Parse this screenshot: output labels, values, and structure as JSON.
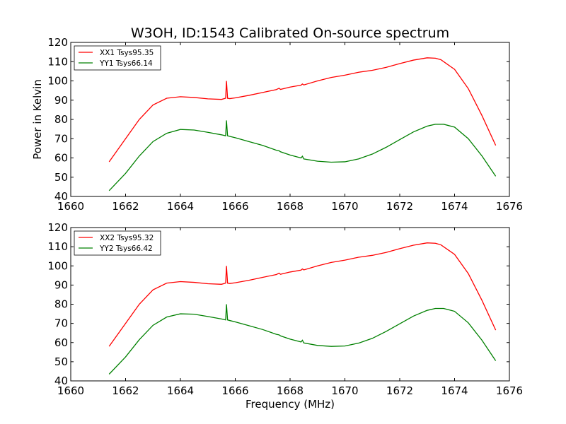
{
  "figure": {
    "title": "W3OH, ID:1543 Calibrated On-source spectrum",
    "xlabel": "Frequency (MHz)",
    "ylabel": "Power in Kelvin"
  },
  "chart_data": [
    {
      "type": "line",
      "title": "W3OH, ID:1543 Calibrated On-source spectrum",
      "xlabel": "",
      "ylabel": "Power in Kelvin",
      "xlim": [
        1660,
        1676
      ],
      "ylim": [
        40,
        120
      ],
      "xticks": [
        "1660",
        "1662",
        "1664",
        "1666",
        "1668",
        "1670",
        "1672",
        "1674",
        "1676"
      ],
      "yticks": [
        "40",
        "50",
        "60",
        "70",
        "80",
        "90",
        "100",
        "110",
        "120"
      ],
      "grid": false,
      "legend": "top-left",
      "series": [
        {
          "name": "XX1 Tsys95.35",
          "color": "#ff0000",
          "x": [
            1661.4,
            1662.0,
            1662.5,
            1663.0,
            1663.5,
            1664.0,
            1664.5,
            1665.0,
            1665.5,
            1665.65,
            1665.68,
            1665.72,
            1665.8,
            1666.0,
            1666.5,
            1667.0,
            1667.5,
            1667.6,
            1667.65,
            1668.0,
            1668.4,
            1668.45,
            1668.5,
            1669.0,
            1669.5,
            1670.0,
            1670.5,
            1671.0,
            1671.5,
            1672.0,
            1672.5,
            1673.0,
            1673.3,
            1673.5,
            1674.0,
            1674.5,
            1675.0,
            1675.5
          ],
          "y": [
            58.0,
            70.0,
            80.0,
            87.5,
            91.0,
            91.8,
            91.4,
            90.7,
            90.4,
            91.0,
            100.0,
            91.0,
            90.8,
            91.2,
            92.5,
            94.0,
            95.5,
            96.2,
            95.6,
            96.8,
            97.8,
            98.4,
            97.9,
            100.0,
            101.8,
            103.0,
            104.5,
            105.5,
            107.0,
            109.0,
            110.8,
            112.0,
            111.8,
            111.0,
            106.0,
            96.0,
            82.0,
            66.5
          ]
        },
        {
          "name": "YY1 Tsys66.14",
          "color": "#008000",
          "x": [
            1661.4,
            1662.0,
            1662.5,
            1663.0,
            1663.5,
            1664.0,
            1664.5,
            1665.0,
            1665.5,
            1665.65,
            1665.68,
            1665.72,
            1665.8,
            1666.0,
            1666.5,
            1667.0,
            1667.5,
            1667.6,
            1667.65,
            1668.0,
            1668.4,
            1668.45,
            1668.5,
            1669.0,
            1669.5,
            1670.0,
            1670.5,
            1671.0,
            1671.5,
            1672.0,
            1672.5,
            1673.0,
            1673.3,
            1673.6,
            1674.0,
            1674.5,
            1675.0,
            1675.5
          ],
          "y": [
            43.0,
            52.0,
            61.0,
            68.5,
            72.8,
            74.8,
            74.5,
            73.3,
            72.0,
            71.5,
            79.5,
            71.5,
            71.2,
            70.5,
            68.5,
            66.5,
            64.0,
            63.7,
            63.2,
            61.5,
            60.0,
            60.9,
            59.5,
            58.3,
            57.8,
            58.0,
            59.5,
            62.0,
            65.5,
            69.5,
            73.5,
            76.5,
            77.5,
            77.5,
            76.0,
            70.0,
            61.0,
            50.5
          ]
        }
      ]
    },
    {
      "type": "line",
      "title": "",
      "xlabel": "Frequency (MHz)",
      "ylabel": "",
      "xlim": [
        1660,
        1676
      ],
      "ylim": [
        40,
        120
      ],
      "xticks": [
        "1660",
        "1662",
        "1664",
        "1666",
        "1668",
        "1670",
        "1672",
        "1674",
        "1676"
      ],
      "yticks": [
        "40",
        "50",
        "60",
        "70",
        "80",
        "90",
        "100",
        "110",
        "120"
      ],
      "grid": false,
      "legend": "top-left",
      "series": [
        {
          "name": "XX2 Tsys95.32",
          "color": "#ff0000",
          "x": [
            1661.4,
            1662.0,
            1662.5,
            1663.0,
            1663.5,
            1664.0,
            1664.5,
            1665.0,
            1665.5,
            1665.65,
            1665.68,
            1665.72,
            1665.8,
            1666.0,
            1666.5,
            1667.0,
            1667.5,
            1667.6,
            1667.65,
            1668.0,
            1668.4,
            1668.45,
            1668.5,
            1669.0,
            1669.5,
            1670.0,
            1670.5,
            1671.0,
            1671.5,
            1672.0,
            1672.5,
            1673.0,
            1673.3,
            1673.5,
            1674.0,
            1674.5,
            1675.0,
            1675.5
          ],
          "y": [
            58.0,
            70.0,
            80.0,
            87.5,
            91.0,
            91.8,
            91.4,
            90.7,
            90.4,
            91.0,
            100.0,
            91.0,
            90.8,
            91.2,
            92.5,
            94.0,
            95.5,
            96.2,
            95.6,
            96.8,
            97.8,
            98.4,
            97.9,
            100.0,
            101.8,
            103.0,
            104.5,
            105.5,
            107.0,
            109.0,
            110.8,
            112.0,
            111.8,
            111.0,
            106.0,
            96.0,
            82.0,
            66.5
          ]
        },
        {
          "name": "YY2 Tsys66.42",
          "color": "#008000",
          "x": [
            1661.4,
            1662.0,
            1662.5,
            1663.0,
            1663.5,
            1664.0,
            1664.5,
            1665.0,
            1665.5,
            1665.65,
            1665.68,
            1665.72,
            1665.8,
            1666.0,
            1666.5,
            1667.0,
            1667.5,
            1667.6,
            1667.65,
            1668.0,
            1668.4,
            1668.45,
            1668.5,
            1669.0,
            1669.5,
            1670.0,
            1670.5,
            1671.0,
            1671.5,
            1672.0,
            1672.5,
            1673.0,
            1673.3,
            1673.6,
            1674.0,
            1674.5,
            1675.0,
            1675.5
          ],
          "y": [
            43.5,
            52.5,
            61.5,
            69.0,
            73.3,
            75.0,
            74.8,
            73.6,
            72.3,
            71.8,
            80.0,
            71.8,
            71.5,
            70.8,
            68.8,
            66.8,
            64.3,
            64.0,
            63.5,
            61.8,
            60.3,
            61.2,
            59.8,
            58.5,
            58.0,
            58.2,
            59.7,
            62.2,
            65.8,
            69.8,
            73.8,
            76.8,
            77.8,
            77.8,
            76.3,
            70.3,
            61.2,
            50.5
          ]
        }
      ]
    }
  ]
}
